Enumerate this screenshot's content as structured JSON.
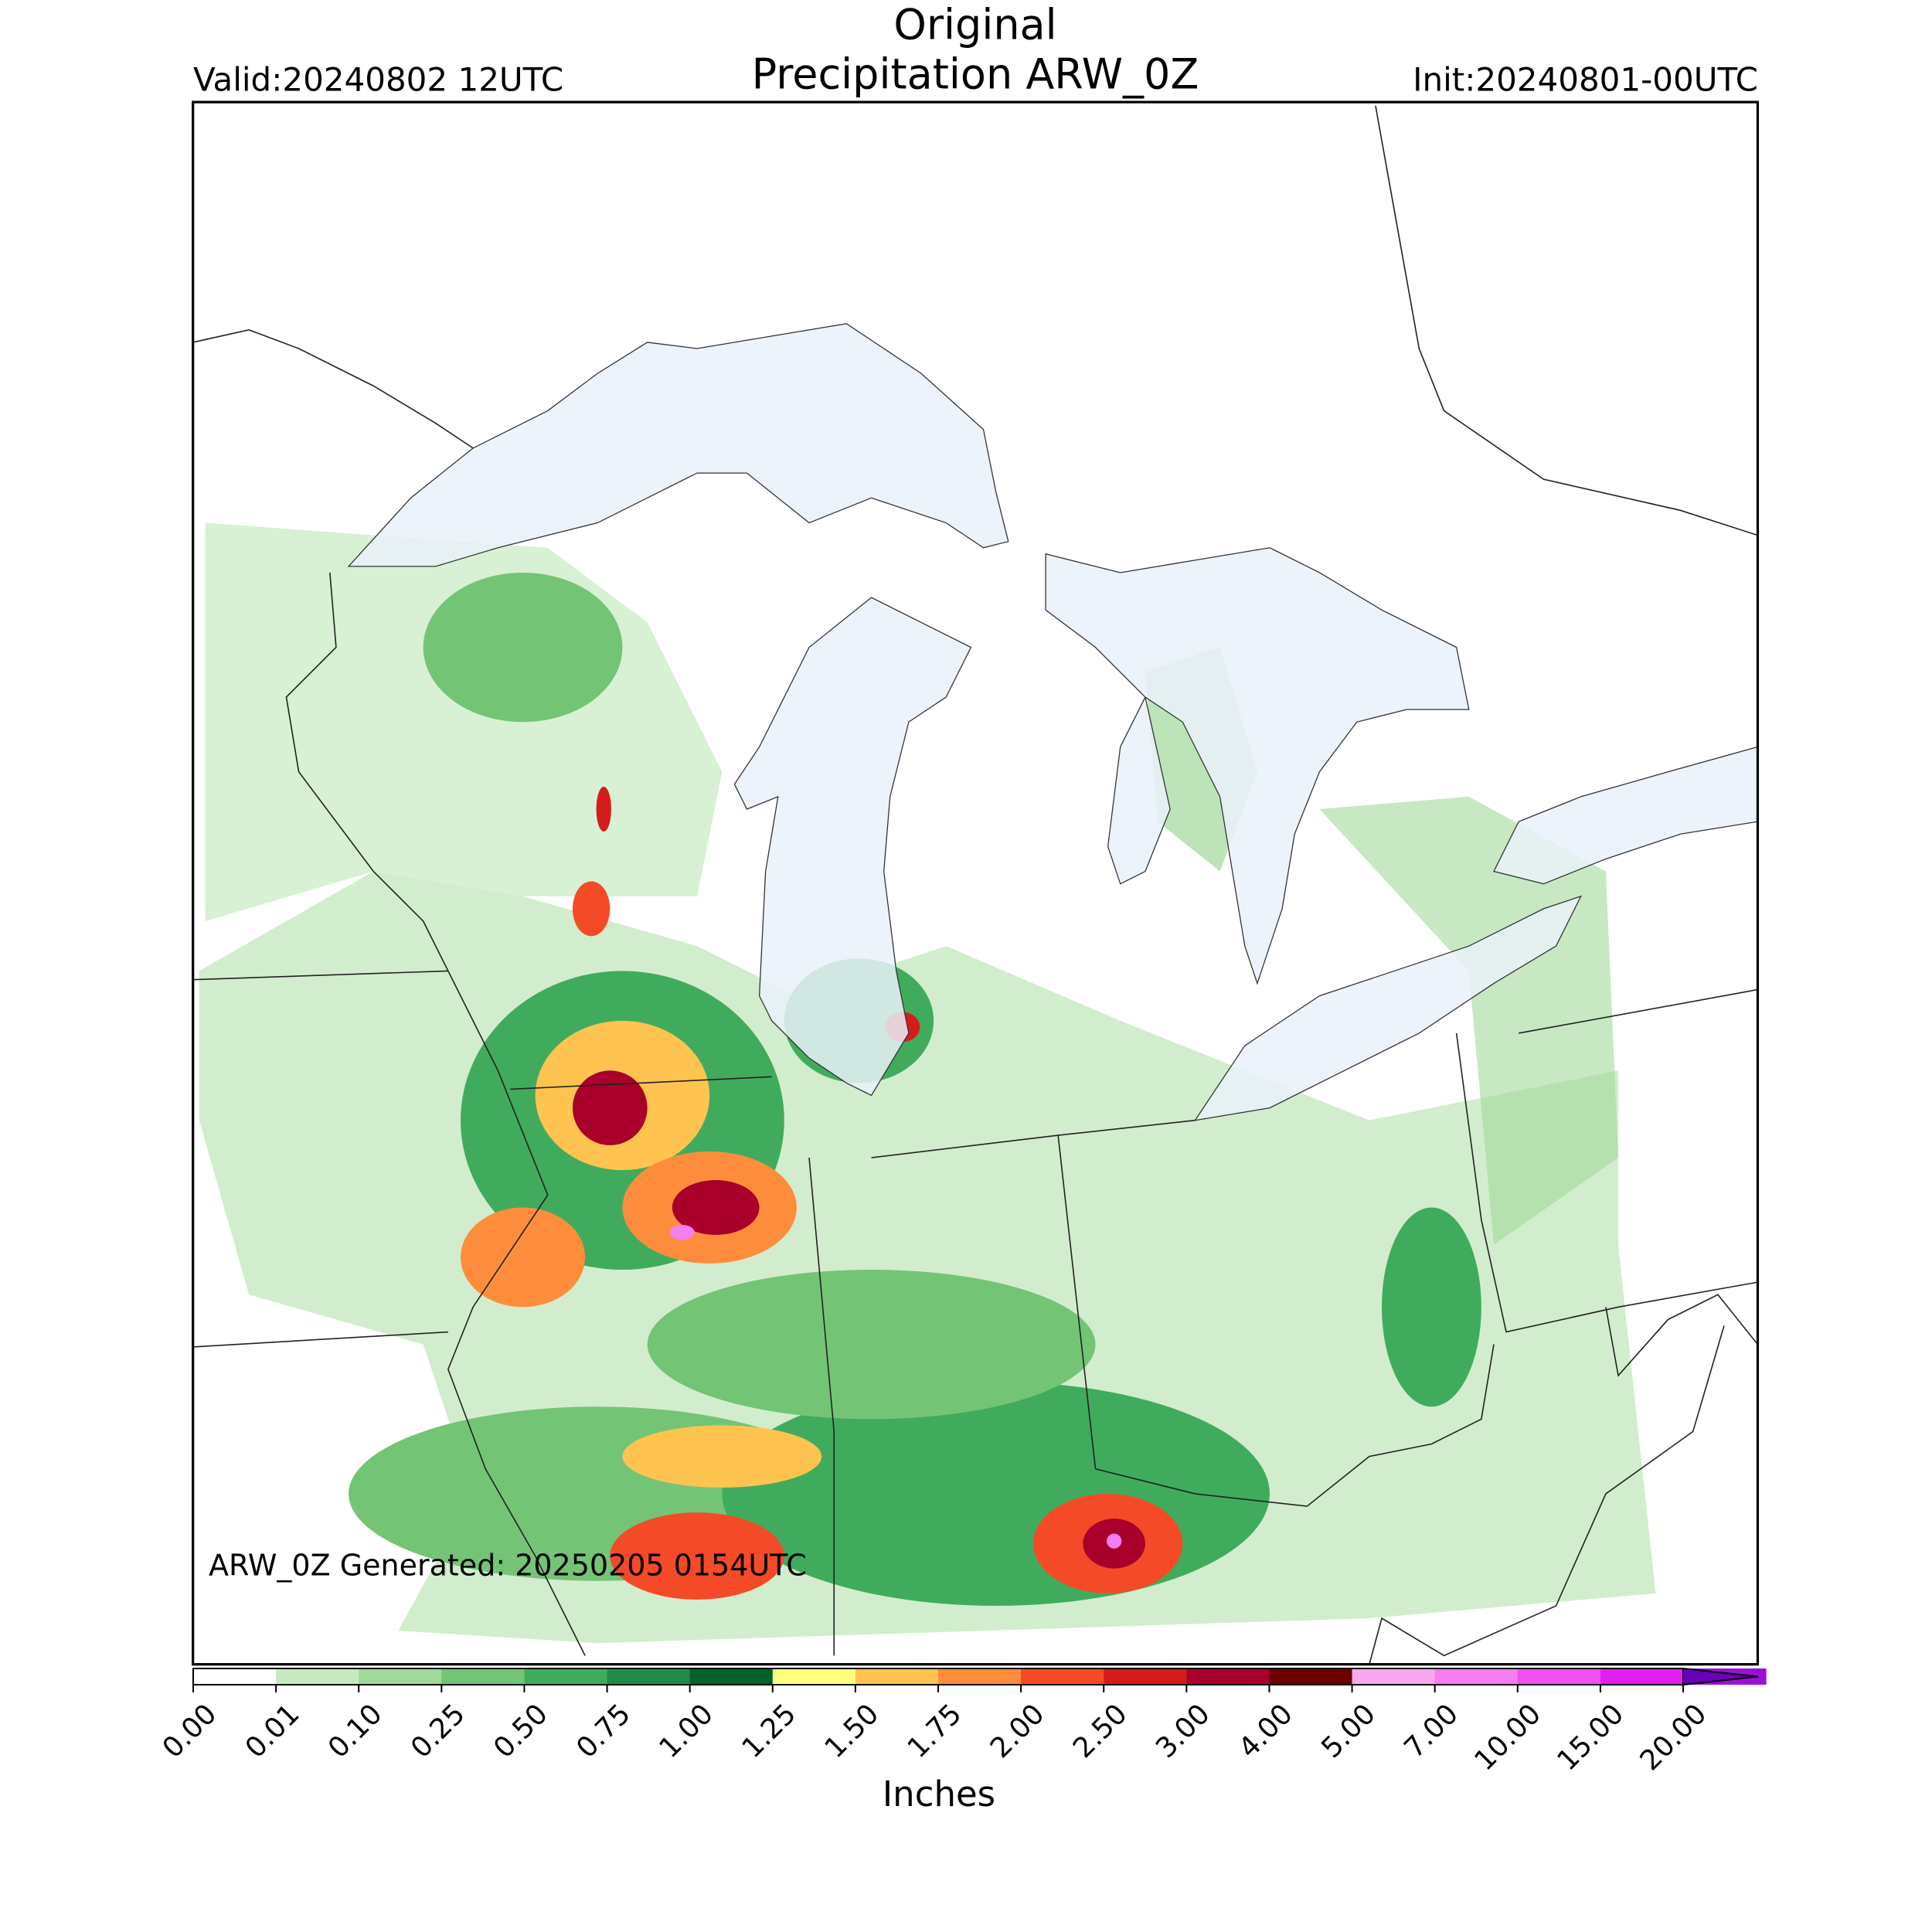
{
  "title": "Original",
  "subtitle": "Precipitation ARW_0Z",
  "valid": "Valid:20240802 12UTC",
  "init": "Init:20240801-00UTC",
  "annotation": "ARW_0Z Generated: 20250205 0154UTC",
  "colorbar": {
    "label": "Inches",
    "ticks": [
      {
        "value": 0,
        "label": "0.00"
      },
      {
        "value": 0.01,
        "label": "0.01"
      },
      {
        "value": 0.1,
        "label": "0.10"
      },
      {
        "value": 0.25,
        "label": "0.25"
      },
      {
        "value": 0.5,
        "label": "0.50"
      },
      {
        "value": 0.75,
        "label": "0.75"
      },
      {
        "value": 1,
        "label": "1.00"
      },
      {
        "value": 1.25,
        "label": "1.25"
      },
      {
        "value": 1.5,
        "label": "1.50"
      },
      {
        "value": 1.75,
        "label": "1.75"
      },
      {
        "value": 2,
        "label": "2.00"
      },
      {
        "value": 2.5,
        "label": "2.50"
      },
      {
        "value": 3,
        "label": "3.00"
      },
      {
        "value": 4,
        "label": "4.00"
      },
      {
        "value": 5,
        "label": "5.00"
      },
      {
        "value": 7,
        "label": "7.00"
      },
      {
        "value": 10,
        "label": "10.00"
      },
      {
        "value": 15,
        "label": "15.00"
      },
      {
        "value": 20,
        "label": "20.00"
      }
    ],
    "colors": [
      "#ffffff",
      "#c7e9c0",
      "#a1d99b",
      "#74c476",
      "#41ab5d",
      "#238b45",
      "#00642a",
      "#ffff80",
      "#ffc44f",
      "#fd8d3c",
      "#f54a27",
      "#d41c1c",
      "#a8002a",
      "#6b0000",
      "#f8a8f0",
      "#f57ef0",
      "#f050f0",
      "#e020f0",
      "#9b10d8"
    ],
    "extend_color": "#6a00b8"
  }
}
